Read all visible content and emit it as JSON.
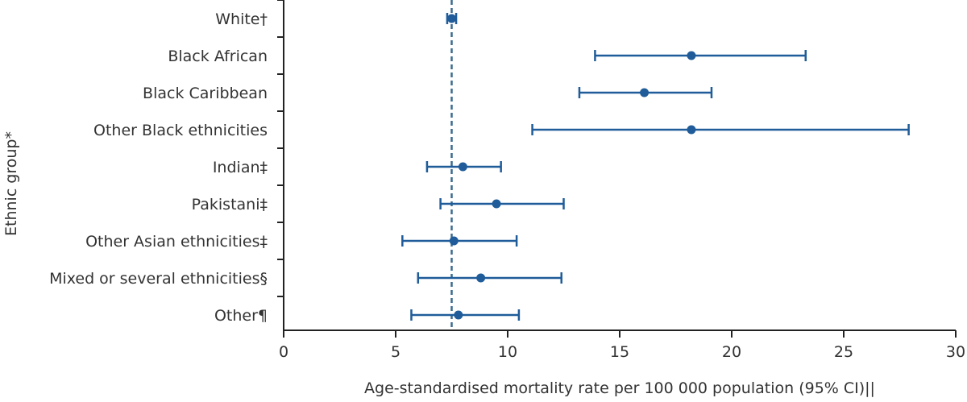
{
  "chart_data": {
    "type": "forest",
    "xlabel": "Age-standardised mortality rate per 100 000 population (95% CI)||",
    "ylabel": "Ethnic group*",
    "xlim": [
      0,
      30
    ],
    "xticks": [
      0,
      5,
      10,
      15,
      20,
      25,
      30
    ],
    "xtick_labels": [
      "0",
      "5",
      "10",
      "15",
      "20",
      "25",
      "30"
    ],
    "reference_line": 7.5,
    "colors": {
      "series": "#1f5c99",
      "reference": "#3d6b8e",
      "axis": "#222222",
      "text": "#333333"
    },
    "categories": [
      "White†",
      "Black African",
      "Black Caribbean",
      "Other Black ethnicities",
      "Indian‡",
      "Pakistani‡",
      "Other Asian ethnicities‡",
      "Mixed or several ethnicities§",
      "Other¶"
    ],
    "points": [
      {
        "estimate": 7.5,
        "lower": 7.3,
        "upper": 7.7
      },
      {
        "estimate": 18.2,
        "lower": 13.9,
        "upper": 23.3
      },
      {
        "estimate": 16.1,
        "lower": 13.2,
        "upper": 19.1
      },
      {
        "estimate": 18.2,
        "lower": 11.1,
        "upper": 27.9
      },
      {
        "estimate": 8.0,
        "lower": 6.4,
        "upper": 9.7
      },
      {
        "estimate": 9.5,
        "lower": 7.0,
        "upper": 12.5
      },
      {
        "estimate": 7.6,
        "lower": 5.3,
        "upper": 10.4
      },
      {
        "estimate": 8.8,
        "lower": 6.0,
        "upper": 12.4
      },
      {
        "estimate": 7.8,
        "lower": 5.7,
        "upper": 10.5
      }
    ]
  }
}
